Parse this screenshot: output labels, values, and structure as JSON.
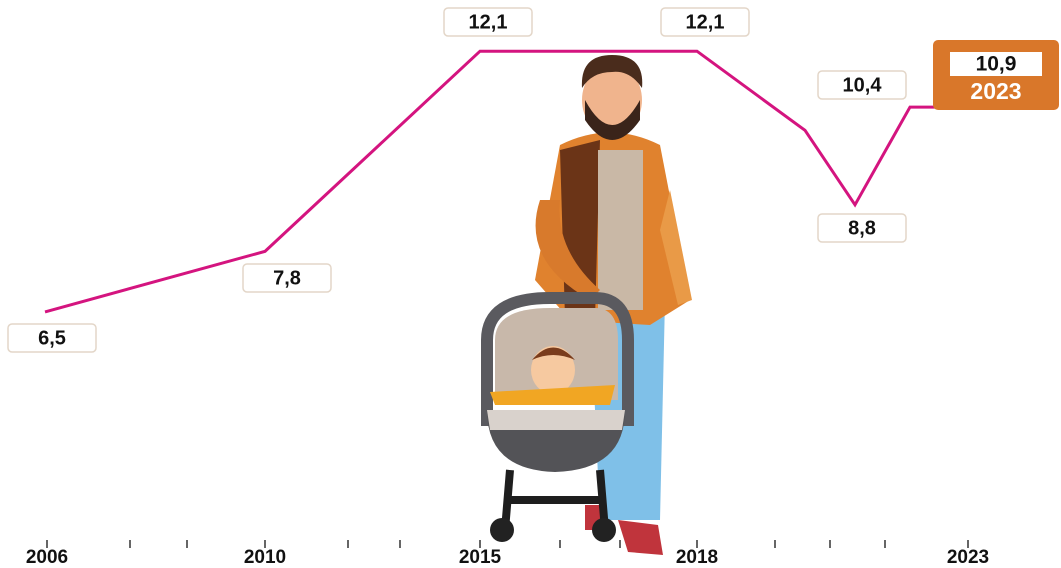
{
  "chart_data": {
    "type": "line",
    "categories": [
      "2006",
      "2010",
      "2015",
      "2018",
      null,
      null,
      "2023"
    ],
    "values": [
      6.5,
      7.8,
      12.1,
      12.1,
      10.4,
      8.8,
      10.9
    ],
    "value_labels": [
      "6,5",
      "7,8",
      "12,1",
      "12,1",
      "10,4",
      "8,8",
      "10,9"
    ],
    "color": "#d4147f",
    "highlight_color": "#d9772a",
    "ylim": [
      1.6,
      13.2
    ]
  }
}
